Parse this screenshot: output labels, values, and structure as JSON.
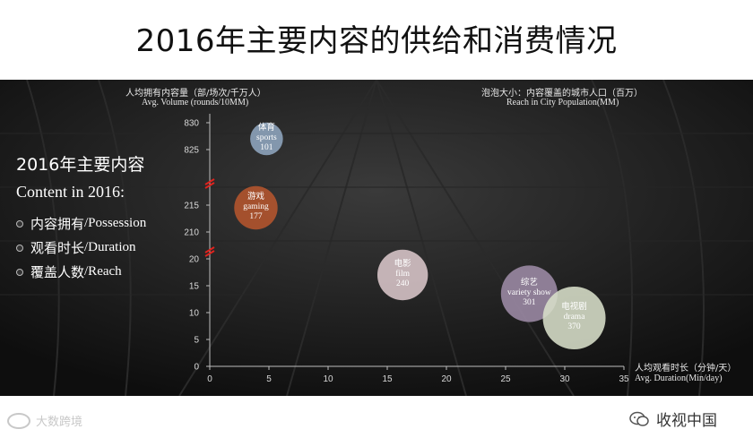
{
  "page": {
    "title": "2016年主要内容的供给和消费情况"
  },
  "sidebar": {
    "heading_cn": "2016年主要内容",
    "heading_en": "Content in 2016:",
    "items": [
      {
        "cn": "内容拥有",
        "en": "/Possession"
      },
      {
        "cn": "观看时长",
        "en": "/Duration"
      },
      {
        "cn": "覆盖人数",
        "en": "/Reach"
      }
    ]
  },
  "chart_data": {
    "type": "scatter",
    "title": "",
    "ylabel_cn": "人均拥有内容量（部/场次/千万人）",
    "ylabel_en": "Avg. Volume (rounds/10MM)",
    "xlabel_cn": "人均观看时长（分钟/天）",
    "xlabel_en": "Avg. Duration(Min/day)",
    "size_label_cn": "泡泡大小：内容覆盖的城市人口（百万）",
    "size_label_en": "Reach in City Population(MM)",
    "xlim": [
      0,
      35
    ],
    "x_ticks": [
      0,
      5,
      10,
      15,
      20,
      25,
      30,
      35
    ],
    "y_ticks": [
      0,
      5,
      10,
      15,
      20,
      210,
      215,
      825,
      830
    ],
    "y_axis_breaks": true,
    "points": [
      {
        "name_cn": "体育",
        "name_en": "sports",
        "x": 4.8,
        "y": 827,
        "size": 101,
        "color": "#8fa6bf"
      },
      {
        "name_cn": "游戏",
        "name_en": "gaming",
        "x": 3.9,
        "y": 214.5,
        "size": 177,
        "color": "#b5552e"
      },
      {
        "name_cn": "电影",
        "name_en": "film",
        "x": 16.3,
        "y": 17,
        "size": 240,
        "color": "#d9c6c9"
      },
      {
        "name_cn": "综艺",
        "name_en": "variety show",
        "x": 27.0,
        "y": 13.5,
        "size": 301,
        "color": "#9d8ba6"
      },
      {
        "name_cn": "电视剧",
        "name_en": "drama",
        "x": 30.8,
        "y": 9,
        "size": 370,
        "color": "#d8dfc9"
      }
    ]
  },
  "footer": {
    "left_text": "大数跨境",
    "right_text": "收视中国"
  }
}
